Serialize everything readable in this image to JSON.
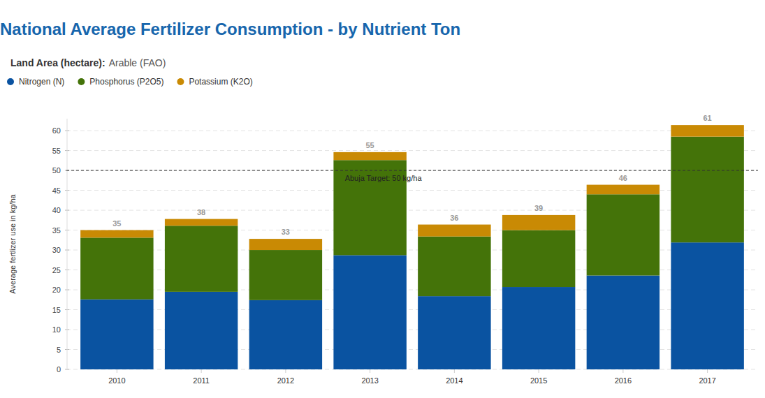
{
  "chart_data": {
    "type": "bar",
    "title": "National Average Fertilizer Consumption - by Nutrient Ton",
    "subtitle_label": "Land Area (hectare):",
    "subtitle": "Arable (FAO)",
    "y_label": "Average fertlizer use in kg/ha",
    "categories": [
      "2010",
      "2011",
      "2012",
      "2013",
      "2014",
      "2015",
      "2016",
      "2017"
    ],
    "series": [
      {
        "name": "Nitrogen (N)",
        "color": "#0a53a1",
        "values": [
          17.6,
          19.5,
          17.4,
          28.7,
          18.4,
          20.7,
          23.6,
          31.9
        ]
      },
      {
        "name": "Phosphorus (P2O5)",
        "color": "#447309",
        "values": [
          15.5,
          16.6,
          12.6,
          23.9,
          15.0,
          14.3,
          20.4,
          26.6
        ]
      },
      {
        "name": "Potassium (K2O)",
        "color": "#c98a04",
        "values": [
          1.9,
          1.7,
          2.8,
          2.0,
          3.0,
          3.8,
          2.4,
          2.9
        ]
      }
    ],
    "totals": [
      35,
      38,
      33,
      55,
      36,
      39,
      46,
      61
    ],
    "annotations": [
      {
        "y": 50,
        "text": "Abuja Target: 50 kg/ha",
        "line_style": "dashed"
      }
    ],
    "ylim": [
      0,
      63
    ],
    "yticks": [
      0,
      5,
      10,
      15,
      20,
      25,
      30,
      35,
      40,
      45,
      50,
      55,
      60
    ],
    "stacked": true,
    "grid": true,
    "legend": "top-left"
  }
}
